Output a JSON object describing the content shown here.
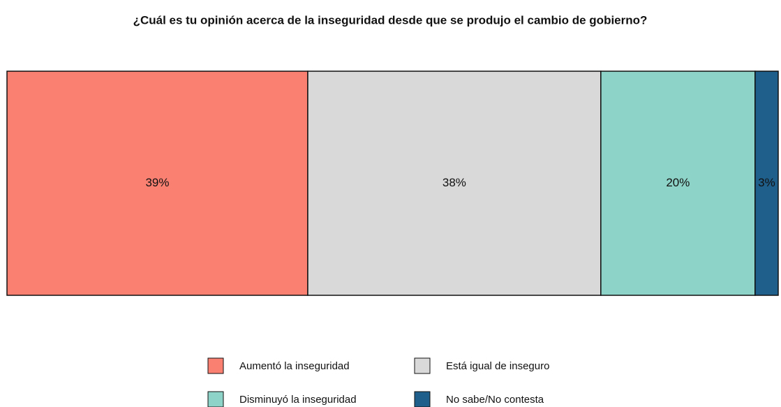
{
  "chart_data": {
    "type": "bar",
    "orientation": "horizontal",
    "stacked": true,
    "title": "¿Cuál es tu opinión acerca de la inseguridad desde que se produjo el cambio de gobierno?",
    "xlim": [
      0,
      100
    ],
    "legend": "bottom",
    "series": [
      {
        "name": "Aumentó la inseguridad",
        "color": "#fa8072",
        "values": [
          39
        ],
        "value_labels": [
          "39%"
        ]
      },
      {
        "name": "Está igual de inseguro",
        "color": "#d9d9d9",
        "values": [
          38
        ],
        "value_labels": [
          "38%"
        ]
      },
      {
        "name": "Disminuyó la inseguridad",
        "color": "#8dd3c7",
        "values": [
          20
        ],
        "value_labels": [
          "20%"
        ]
      },
      {
        "name": "No sabe/No contesta",
        "color": "#1f5f8b",
        "values": [
          3
        ],
        "value_labels": [
          "3%"
        ]
      }
    ]
  }
}
